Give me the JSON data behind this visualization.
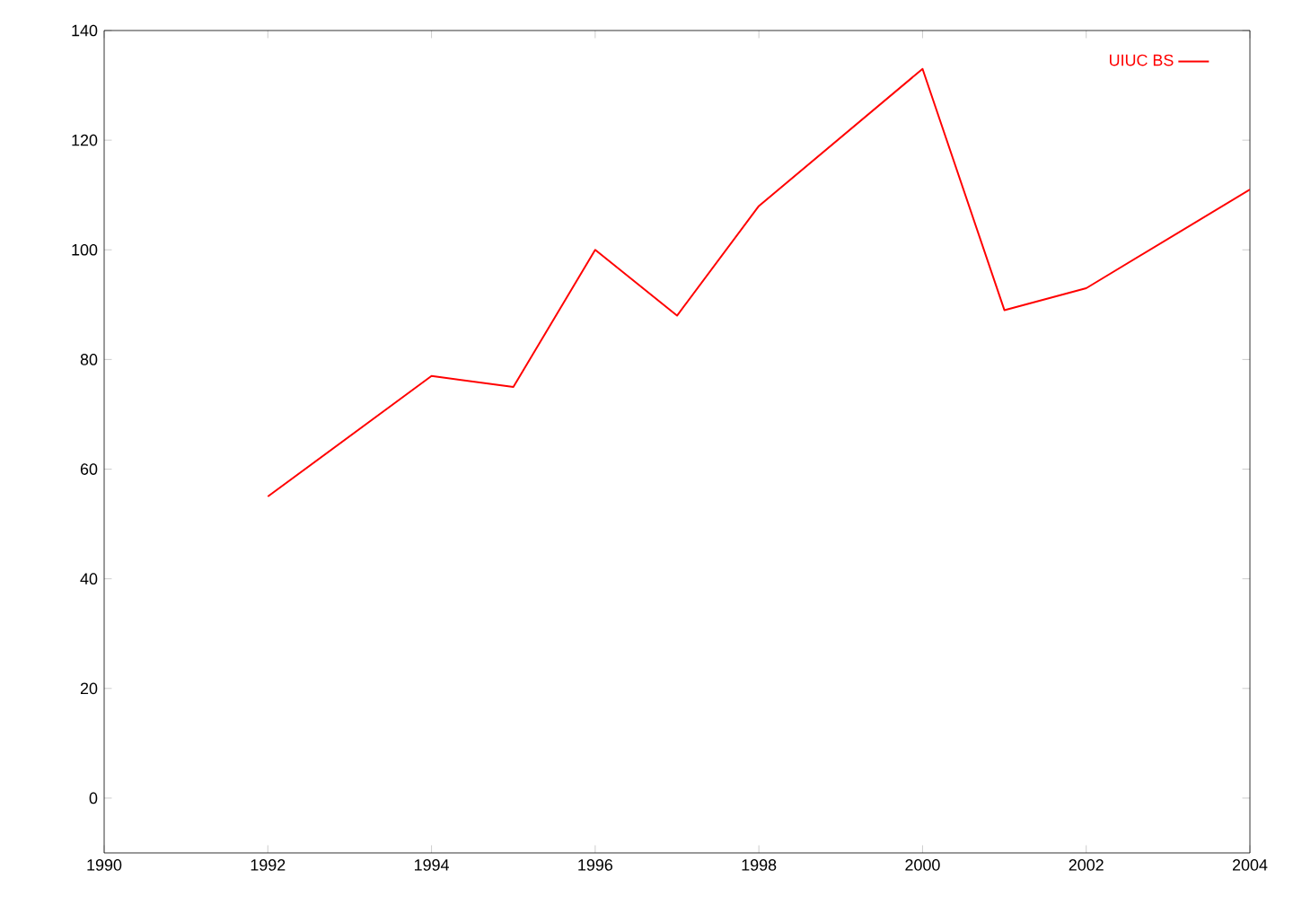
{
  "chart_data": {
    "type": "line",
    "x": [
      1992,
      1994,
      1995,
      1996,
      1997,
      1998,
      2000,
      2001,
      2002,
      2004
    ],
    "series": [
      {
        "name": "UIUC BS",
        "color": "#ff0000",
        "values": [
          55,
          77,
          75,
          100,
          88,
          108,
          133,
          89,
          93,
          111
        ]
      }
    ],
    "xlim": [
      1990,
      2004
    ],
    "xticks": [
      1990,
      1992,
      1994,
      1996,
      1998,
      2000,
      2002,
      2004
    ],
    "ylim": [
      -10,
      140
    ],
    "yticks": [
      0,
      20,
      40,
      60,
      80,
      100,
      120,
      140
    ],
    "legend": "top right",
    "marker": "none",
    "line_style": "solid",
    "grid": false
  }
}
